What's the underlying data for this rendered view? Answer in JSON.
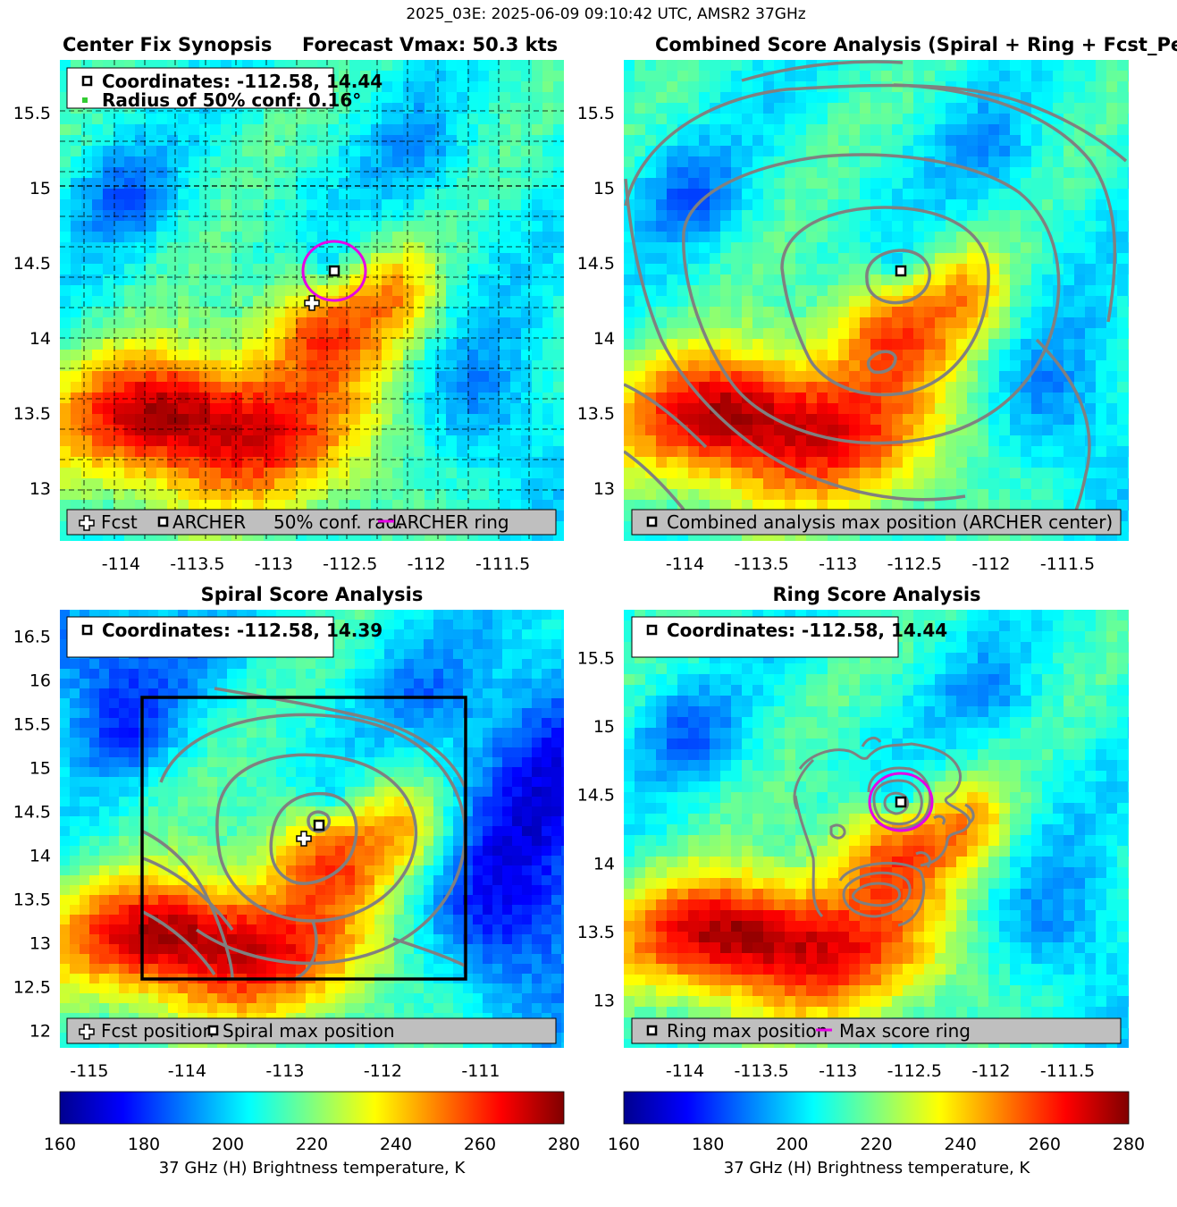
{
  "figure": {
    "suptitle": "2025_03E: 2025-06-09 09:10:42 UTC, AMSR2 37GHz",
    "colormap": "jet",
    "colors": {
      "ring": "#e600e6",
      "contour": "#808080",
      "fixbox": "#000000",
      "legend_bg": "#bfbfbf"
    }
  },
  "panels": [
    {
      "title_left": "Center Fix Synopsis",
      "title_right": "Forecast Vmax: 50.3 kts",
      "info": {
        "line1": "Coordinates: -112.58, 14.44",
        "line2": "Radius of 50% conf: 0.16°"
      },
      "legend": [
        {
          "icon": "plus-icon",
          "label": "Fcst"
        },
        {
          "icon": "square-marker-icon",
          "label": "ARCHER"
        },
        {
          "icon": "none",
          "label": "50% conf. rad."
        },
        {
          "icon": "magenta-line-icon",
          "label": "ARCHER ring"
        }
      ]
    },
    {
      "title": "Combined Score Analysis (Spiral + Ring + Fcst_Pe",
      "legend": [
        {
          "icon": "square-marker-icon",
          "label": "Combined analysis max position (ARCHER center)"
        }
      ]
    },
    {
      "title": "Spiral Score Analysis",
      "info": {
        "line1": "Coordinates: -112.58, 14.39"
      },
      "legend": [
        {
          "icon": "plus-icon",
          "label": "Fcst position"
        },
        {
          "icon": "square-marker-icon",
          "label": "Spiral max position"
        }
      ]
    },
    {
      "title": "Ring Score Analysis",
      "info": {
        "line1": "Coordinates: -112.58, 14.44"
      },
      "legend": [
        {
          "icon": "square-marker-icon",
          "label": "Ring max position"
        },
        {
          "icon": "magenta-line-icon",
          "label": "Max score ring"
        }
      ]
    }
  ],
  "chart_data": [
    {
      "type": "heatmap",
      "title": "Center Fix Synopsis     Forecast Vmax: 50.3 kts",
      "variable": "37 GHz (H) Brightness temperature, K",
      "xlim": [
        -114.4,
        -111.1
      ],
      "ylim": [
        12.65,
        15.85
      ],
      "xticks": [
        -114,
        -113.5,
        -113,
        -112.5,
        -112,
        -111.5
      ],
      "yticks": [
        13,
        13.5,
        14,
        14.5,
        15,
        15.5
      ],
      "grid": "dashed 0.2 deg",
      "archer_center": [
        -112.58,
        14.44
      ],
      "fcst_position": [
        -112.74,
        14.22
      ],
      "conf50_radius_deg": 0.16
    },
    {
      "type": "heatmap",
      "title": "Combined Score Analysis (Spiral + Ring + Fcst_Pe",
      "xlim": [
        -114.4,
        -111.1
      ],
      "ylim": [
        12.65,
        15.85
      ],
      "xticks": [
        -114,
        -113.5,
        -113,
        -112.5,
        -112,
        -111.5
      ],
      "yticks": [
        13,
        13.5,
        14,
        14.5,
        15,
        15.5
      ],
      "max_position": [
        -112.58,
        14.44
      ],
      "contours": "combined score (gray)"
    },
    {
      "type": "heatmap",
      "title": "Spiral Score Analysis",
      "xlim": [
        -115.3,
        -110.15
      ],
      "ylim": [
        11.8,
        16.8
      ],
      "xticks": [
        -115,
        -114,
        -113,
        -112,
        -111
      ],
      "yticks": [
        12,
        12.5,
        13,
        13.5,
        14,
        14.5,
        15,
        15.5,
        16,
        16.5
      ],
      "max_position": [
        -112.58,
        14.39
      ],
      "fcst_position": [
        -112.74,
        14.22
      ],
      "search_box": {
        "lon": [
          -114.5,
          -111.2
        ],
        "lat": [
          12.65,
          15.85
        ]
      }
    },
    {
      "type": "heatmap",
      "title": "Ring Score Analysis",
      "xlim": [
        -114.4,
        -111.1
      ],
      "ylim": [
        12.65,
        15.85
      ],
      "xticks": [
        -114,
        -113.5,
        -113,
        -112.5,
        -112,
        -111.5
      ],
      "yticks": [
        13,
        13.5,
        14,
        14.5,
        15,
        15.5
      ],
      "max_position": [
        -112.58,
        14.44
      ],
      "ring_radius_deg": 0.2
    },
    {
      "type": "colorbar",
      "label": "37 GHz (H) Brightness temperature, K",
      "range": [
        160,
        280
      ],
      "ticks": [
        160,
        180,
        200,
        220,
        240,
        260,
        280
      ]
    }
  ]
}
